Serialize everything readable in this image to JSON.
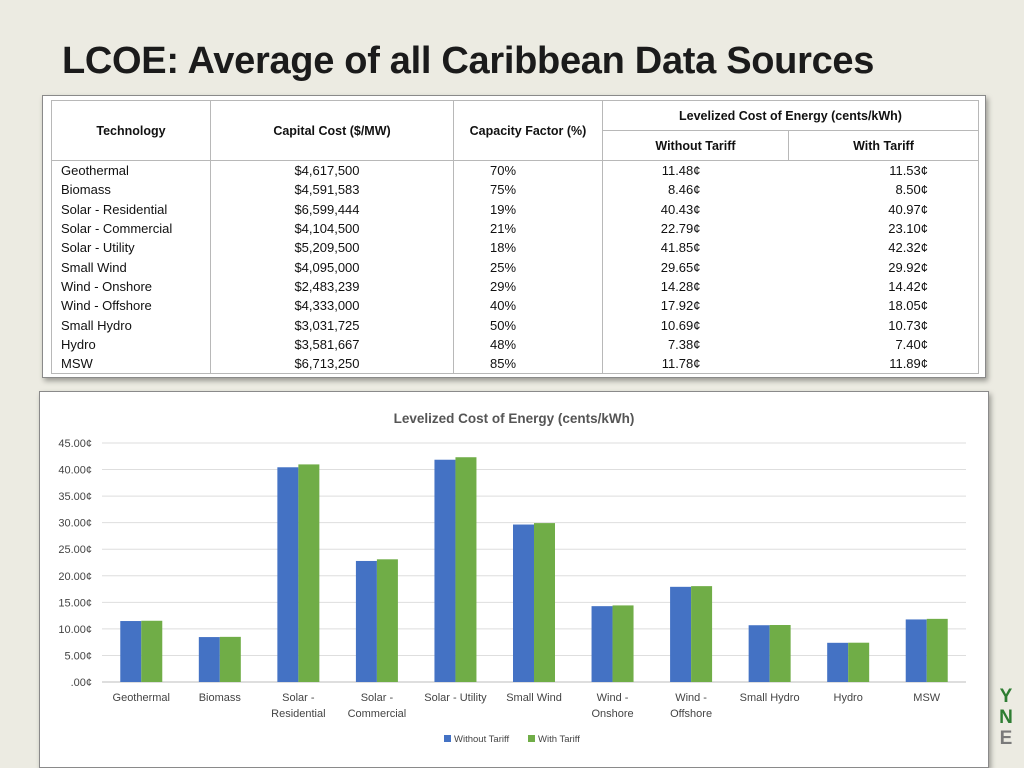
{
  "slide": {
    "title": "LCOE: Average of all Caribbean Data Sources"
  },
  "table": {
    "headers": {
      "technology": "Technology",
      "capital_cost": "Capital Cost ($/MW)",
      "capacity_factor": "Capacity Factor (%)",
      "lcoe_group": "Levelized Cost of Energy (cents/kWh)",
      "without_tariff": "Without Tariff",
      "with_tariff": "With Tariff"
    },
    "rows": [
      {
        "technology": "Geothermal",
        "capital_cost": "$4,617,500",
        "capacity_factor": "70%",
        "without_tariff": "11.48¢",
        "with_tariff": "11.53¢"
      },
      {
        "technology": "Biomass",
        "capital_cost": "$4,591,583",
        "capacity_factor": "75%",
        "without_tariff": "8.46¢",
        "with_tariff": "8.50¢"
      },
      {
        "technology": "Solar - Residential",
        "capital_cost": "$6,599,444",
        "capacity_factor": "19%",
        "without_tariff": "40.43¢",
        "with_tariff": "40.97¢"
      },
      {
        "technology": "Solar - Commercial",
        "capital_cost": "$4,104,500",
        "capacity_factor": "21%",
        "without_tariff": "22.79¢",
        "with_tariff": "23.10¢"
      },
      {
        "technology": "Solar - Utility",
        "capital_cost": "$5,209,500",
        "capacity_factor": "18%",
        "without_tariff": "41.85¢",
        "with_tariff": "42.32¢"
      },
      {
        "technology": "Small Wind",
        "capital_cost": "$4,095,000",
        "capacity_factor": "25%",
        "without_tariff": "29.65¢",
        "with_tariff": "29.92¢"
      },
      {
        "technology": "Wind - Onshore",
        "capital_cost": "$2,483,239",
        "capacity_factor": "29%",
        "without_tariff": "14.28¢",
        "with_tariff": "14.42¢"
      },
      {
        "technology": "Wind - Offshore",
        "capital_cost": "$4,333,000",
        "capacity_factor": "40%",
        "without_tariff": "17.92¢",
        "with_tariff": "18.05¢"
      },
      {
        "technology": "Small Hydro",
        "capital_cost": "$3,031,725",
        "capacity_factor": "50%",
        "without_tariff": "10.69¢",
        "with_tariff": "10.73¢"
      },
      {
        "technology": "Hydro",
        "capital_cost": "$3,581,667",
        "capacity_factor": "48%",
        "without_tariff": "7.38¢",
        "with_tariff": "7.40¢"
      },
      {
        "technology": "MSW",
        "capital_cost": "$6,713,250",
        "capacity_factor": "85%",
        "without_tariff": "11.78¢",
        "with_tariff": "11.89¢"
      }
    ]
  },
  "chart_data": {
    "type": "bar",
    "title": "Levelized Cost of Energy (cents/kWh)",
    "xlabel": "",
    "ylabel": "",
    "ylim": [
      0,
      45
    ],
    "y_ticks": [
      0,
      5,
      10,
      15,
      20,
      25,
      30,
      35,
      40,
      45
    ],
    "y_tick_labels": [
      ".00¢",
      "5.00¢",
      "10.00¢",
      "15.00¢",
      "20.00¢",
      "25.00¢",
      "30.00¢",
      "35.00¢",
      "40.00¢",
      "45.00¢"
    ],
    "grid": true,
    "legend_position": "bottom",
    "categories": [
      [
        "Geothermal"
      ],
      [
        "Biomass"
      ],
      [
        "Solar -",
        "Residential"
      ],
      [
        "Solar -",
        "Commercial"
      ],
      [
        "Solar - Utility"
      ],
      [
        "Small Wind"
      ],
      [
        "Wind -",
        "Onshore"
      ],
      [
        "Wind -",
        "Offshore"
      ],
      [
        "Small Hydro"
      ],
      [
        "Hydro"
      ],
      [
        "MSW"
      ]
    ],
    "series": [
      {
        "name": "Without Tariff",
        "color": "#4472c4",
        "values": [
          11.48,
          8.46,
          40.43,
          22.79,
          41.85,
          29.65,
          14.28,
          17.92,
          10.69,
          7.38,
          11.78
        ]
      },
      {
        "name": "With Tariff",
        "color": "#70ad47",
        "values": [
          11.53,
          8.5,
          40.97,
          23.1,
          42.32,
          29.92,
          14.42,
          18.05,
          10.73,
          7.4,
          11.89
        ]
      }
    ]
  },
  "logo": {
    "letters": [
      "Y",
      "N",
      "E"
    ],
    "colors": [
      "#2e7d32",
      "#2e7d32",
      "#7a7a7a"
    ]
  }
}
